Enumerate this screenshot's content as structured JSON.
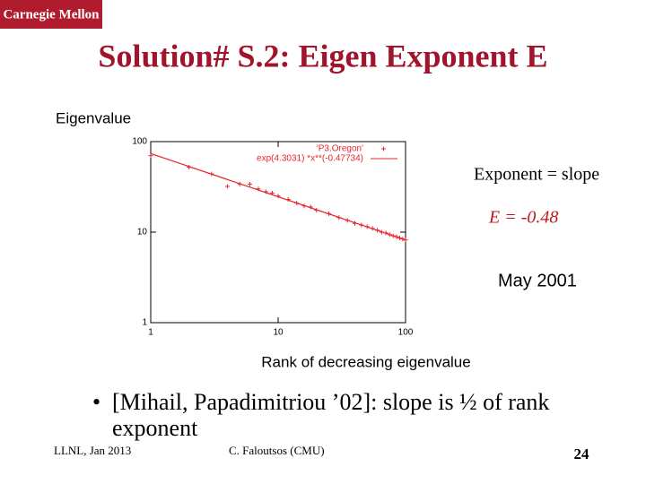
{
  "slide": {
    "logo": "Carnegie Mellon",
    "title": "Solution# S.2: Eigen Exponent E",
    "bullet": "[Mihail, Papadimitriou ’02]: slope is ½ of rank exponent",
    "footer_left": "LLNL, Jan 2013",
    "footer_center": "C. Faloutsos (CMU)",
    "page_number": "24"
  },
  "chart_data": {
    "type": "scatter",
    "ylabel": "Eigenvalue",
    "xlabel": "Rank of decreasing eigenvalue",
    "annotations": [
      "Exponent = slope",
      "E = -0.48",
      "May 2001"
    ],
    "xscale": "log",
    "yscale": "log",
    "xlim": [
      1,
      100
    ],
    "ylim": [
      1,
      100
    ],
    "xticks": [
      1,
      10,
      100
    ],
    "yticks": [
      1,
      10,
      100
    ],
    "legend": "top-right",
    "series": [
      {
        "name": "'P3.Oregon'",
        "color": "#e8252a",
        "marker": "plus",
        "x": [
          1,
          2,
          3,
          4,
          5,
          6,
          7,
          8,
          9,
          10,
          12,
          14,
          16,
          18,
          20,
          25,
          30,
          35,
          40,
          45,
          50,
          55,
          60,
          65,
          70,
          75,
          80,
          85,
          90,
          95,
          100
        ],
        "values": [
          70,
          52,
          44,
          32,
          34,
          34,
          30,
          28,
          27,
          25,
          23,
          21,
          19.5,
          19,
          17.5,
          16,
          14.5,
          13.5,
          12.5,
          12,
          11.5,
          11,
          10.5,
          10,
          9.8,
          9.4,
          9.1,
          8.9,
          8.6,
          8.4,
          8.2
        ]
      },
      {
        "name": "exp(4.3031) *x**(-0.47734)",
        "color": "#e8252a",
        "marker": "line",
        "x": [
          1,
          100
        ],
        "values": [
          73.9,
          8.2
        ]
      }
    ]
  }
}
